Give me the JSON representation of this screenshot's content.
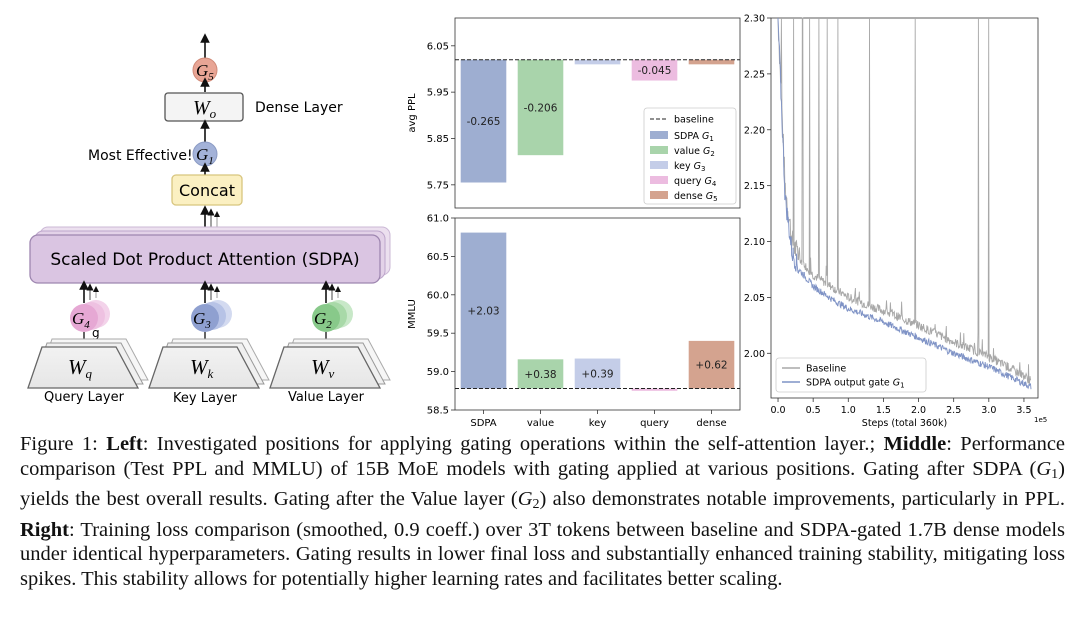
{
  "diagram": {
    "g5": "G",
    "g5_sub": "5",
    "wo": "W",
    "wo_sub": "o",
    "dense_layer": "Dense Layer",
    "most_effective": "Most Effective!",
    "g1": "G",
    "g1_sub": "1",
    "concat": "Concat",
    "sdpa": "Scaled Dot Product Attention (SDPA)",
    "g4": "G",
    "g4_sub": "4",
    "g4_extra": "g",
    "g3": "G",
    "g3_sub": "3",
    "g2": "G",
    "g2_sub": "2",
    "wq": "W",
    "wq_sub": "q",
    "wk": "W",
    "wk_sub": "k",
    "wv": "W",
    "wv_sub": "v",
    "query_layer": "Query Layer",
    "key_layer": "Key Layer",
    "value_layer": "Value Layer"
  },
  "colors": {
    "sdpa": "#9eaed1",
    "value": "#a9d4ab",
    "key": "#c4cde8",
    "query": "#ecbce0",
    "dense": "#d4a38f",
    "baseline_line": "#7f93c6",
    "gray_line": "#a8a8a8"
  },
  "chart_data": [
    {
      "type": "bar",
      "ylabel": "avg PPL",
      "ylim": [
        5.7,
        6.11
      ],
      "yticks": [
        "5.75",
        "5.85",
        "5.95",
        "6.05"
      ],
      "baseline": 6.02,
      "categories": [
        "SDPA",
        "value",
        "key",
        "query",
        "dense"
      ],
      "deltas": [
        -0.265,
        -0.206,
        -0.01,
        -0.045,
        -0.01
      ],
      "data_labels": [
        "-0.265",
        "-0.206",
        "",
        "-0.045",
        ""
      ],
      "legend": {
        "baseline": "baseline",
        "items": [
          {
            "label": "SDPA",
            "sub": "1"
          },
          {
            "label": "value",
            "sub": "2"
          },
          {
            "label": "key",
            "sub": "3"
          },
          {
            "label": "query",
            "sub": "4"
          },
          {
            "label": "dense",
            "sub": "5"
          }
        ]
      },
      "grid": false
    },
    {
      "type": "bar",
      "ylabel": "MMLU",
      "ylim": [
        58.5,
        61.0
      ],
      "yticks": [
        "58.5",
        "59.0",
        "59.5",
        "60.0",
        "60.5",
        "61.0"
      ],
      "baseline": 58.78,
      "categories": [
        "SDPA",
        "value",
        "key",
        "query",
        "dense"
      ],
      "deltas": [
        2.03,
        0.38,
        0.39,
        -0.03,
        0.62
      ],
      "data_labels": [
        "+2.03",
        "+0.38",
        "+0.39",
        "",
        "+0.62"
      ],
      "grid": false
    },
    {
      "type": "line",
      "xlabel": "Steps (total 360k)",
      "xticks": [
        "0.0",
        "0.5",
        "1.0",
        "1.5",
        "2.0",
        "2.5",
        "3.0",
        "3.5"
      ],
      "x_exponent": "1e5",
      "xlim": [
        -0.1,
        3.7
      ],
      "ylim": [
        1.96,
        2.3
      ],
      "yticks": [
        "2.00",
        "2.05",
        "2.10",
        "2.15",
        "2.20",
        "2.25",
        "2.30"
      ],
      "series": [
        {
          "name": "Baseline",
          "x": [
            0.0,
            0.1,
            0.2,
            0.3,
            0.5,
            0.8,
            1.0,
            1.5,
            2.0,
            2.5,
            3.0,
            3.2,
            3.5,
            3.6
          ],
          "y": [
            2.3,
            2.15,
            2.1,
            2.085,
            2.07,
            2.058,
            2.05,
            2.038,
            2.025,
            2.01,
            1.997,
            1.99,
            1.98,
            1.975
          ]
        },
        {
          "name": "SDPA output gate",
          "sub": "1",
          "x": [
            0.0,
            0.1,
            0.2,
            0.3,
            0.5,
            0.8,
            1.0,
            1.5,
            2.0,
            2.5,
            3.0,
            3.2,
            3.5,
            3.6
          ],
          "y": [
            2.3,
            2.14,
            2.09,
            2.075,
            2.06,
            2.047,
            2.04,
            2.028,
            2.014,
            2.0,
            1.988,
            1.982,
            1.973,
            1.97
          ]
        }
      ],
      "spike_x": [
        0.05,
        0.22,
        0.35,
        0.45,
        0.58,
        0.7,
        0.85,
        1.3,
        1.95,
        2.85,
        3.0
      ],
      "legend_placement": "lower-left",
      "grid": false
    }
  ],
  "caption": {
    "fig": "Figure 1:",
    "left_label": "Left",
    "left_text": ": Investigated positions for applying gating operations within the self-attention layer.;",
    "middle_label": "Middle",
    "middle_text": ": Performance comparison (Test PPL and MMLU) of 15B MoE models with gating applied at various positions. Gating after SDPA (",
    "g1": "G",
    "g1_sub": "1",
    "middle_text2": ") yields the best overall results. Gating after the Value layer (",
    "g2": "G",
    "g2_sub": "2",
    "middle_text3": ") also demonstrates notable improvements, particularly in PPL.",
    "right_label": "Right",
    "right_text": ": Training loss comparison (smoothed, 0.9 coeff.) over 3T tokens between baseline and SDPA-gated 1.7B dense models under identical hyperparameters. Gating results in lower final loss and substantially enhanced training stability, mitigating loss spikes. This stability allows for potentially higher learning rates and facilitates better scaling."
  }
}
